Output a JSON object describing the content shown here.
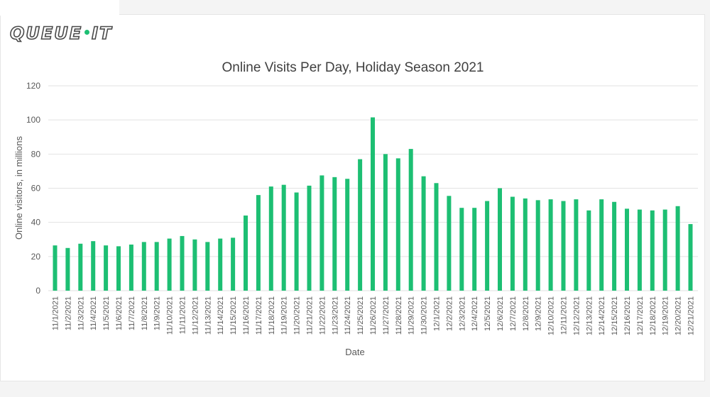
{
  "logo": {
    "left": "QUEUE",
    "right": "IT",
    "accent_color": "#1dbf73"
  },
  "chart_data": {
    "type": "bar",
    "title": "Online Visits Per Day, Holiday Season 2021",
    "xlabel": "Date",
    "ylabel": "Online visitors, in millions",
    "ylim": [
      0,
      120
    ],
    "yticks": [
      0,
      20,
      40,
      60,
      80,
      100,
      120
    ],
    "grid": true,
    "bar_color": "#1dbf73",
    "categories": [
      "11/1/2021",
      "11/2/2021",
      "11/3/2021",
      "11/4/2021",
      "11/5/2021",
      "11/6/2021",
      "11/7/2021",
      "11/8/2021",
      "11/9/2021",
      "11/10/2021",
      "11/11/2021",
      "11/12/2021",
      "11/13/2021",
      "11/14/2021",
      "11/15/2021",
      "11/16/2021",
      "11/17/2021",
      "11/18/2021",
      "11/19/2021",
      "11/20/2021",
      "11/21/2021",
      "11/22/2021",
      "11/23/2021",
      "11/24/2021",
      "11/25/2021",
      "11/26/2021",
      "11/27/2021",
      "11/28/2021",
      "11/29/2021",
      "11/30/2021",
      "12/1/2021",
      "12/2/2021",
      "12/3/2021",
      "12/4/2021",
      "12/5/2021",
      "12/6/2021",
      "12/7/2021",
      "12/8/2021",
      "12/9/2021",
      "12/10/2021",
      "12/11/2021",
      "12/12/2021",
      "12/13/2021",
      "12/14/2021",
      "12/15/2021",
      "12/16/2021",
      "12/17/2021",
      "12/18/2021",
      "12/19/2021",
      "12/20/2021",
      "12/21/2021"
    ],
    "values": [
      26.5,
      25,
      27.5,
      29,
      26.5,
      26,
      27,
      28.5,
      28.5,
      30.5,
      32,
      30,
      28.5,
      30.5,
      31,
      44,
      56,
      61,
      62,
      57.5,
      61.5,
      67.5,
      66.5,
      65.5,
      77,
      101.5,
      80,
      77.5,
      83,
      67,
      63,
      55.5,
      48.5,
      48.5,
      52.5,
      60,
      55,
      54,
      53,
      53.5,
      52.5,
      53.5,
      47,
      53.5,
      52,
      48,
      47.5,
      47,
      47.5,
      49.5,
      39
    ]
  }
}
